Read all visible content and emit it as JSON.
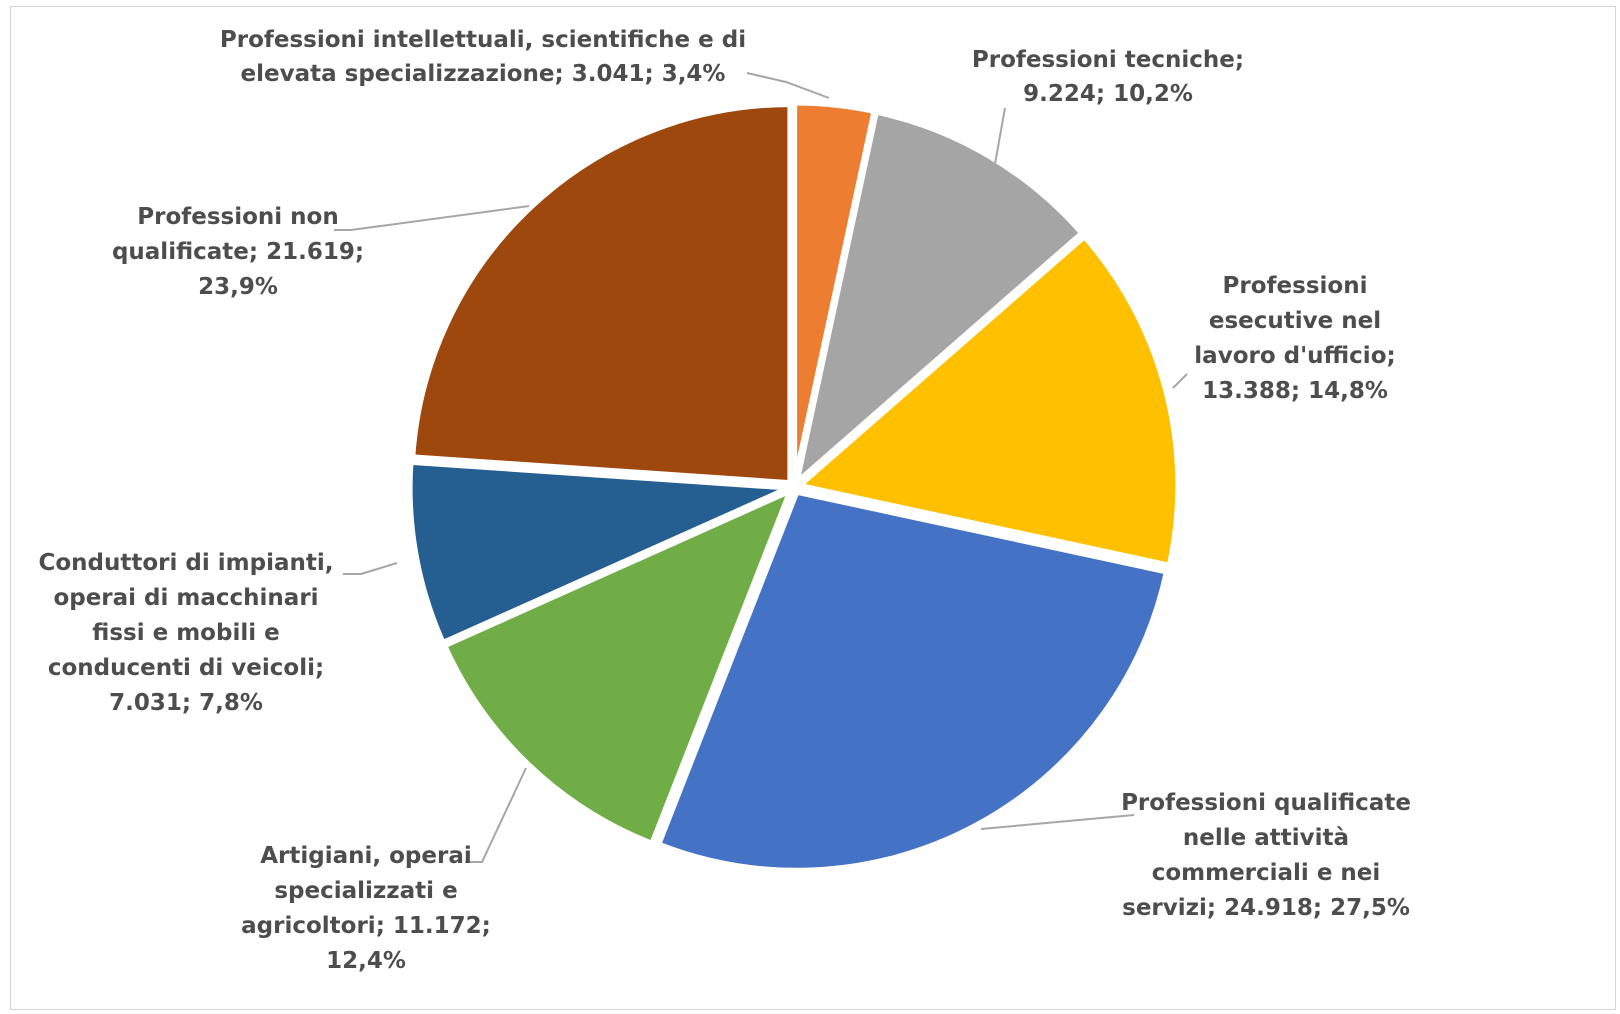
{
  "chart_data": {
    "type": "pie",
    "title": "",
    "start_angle_deg": 0,
    "direction": "clockwise",
    "exploded": true,
    "slices": [
      {
        "name": "Professioni intellettuali, scientifiche e di elevata specializzazione",
        "value": 3041,
        "percent": 3.4,
        "color": "#ED7D31",
        "label_lines": [
          "Professioni intellettuali, scientifiche e di",
          "elevata specializzazione; 3.041; 3,4%"
        ]
      },
      {
        "name": "Professioni tecniche",
        "value": 9224,
        "percent": 10.2,
        "color": "#A5A5A5",
        "label_lines": [
          "Professioni tecniche;",
          "9.224; 10,2%"
        ]
      },
      {
        "name": "Professioni esecutive nel lavoro d'ufficio",
        "value": 13388,
        "percent": 14.8,
        "color": "#FFC000",
        "label_lines": [
          "Professioni",
          "esecutive nel",
          "lavoro d'ufficio;",
          "13.388; 14,8%"
        ]
      },
      {
        "name": "Professioni qualificate nelle attività commerciali e nei servizi",
        "value": 24918,
        "percent": 27.5,
        "color": "#4472C4",
        "label_lines": [
          "Professioni qualificate",
          "nelle attività",
          "commerciali e nei",
          "servizi; 24.918; 27,5%"
        ]
      },
      {
        "name": "Artigiani, operai specializzati e agricoltori",
        "value": 11172,
        "percent": 12.4,
        "color": "#70AD47",
        "label_lines": [
          "Artigiani, operai",
          "specializzati e",
          "agricoltori; 11.172;",
          "12,4%"
        ]
      },
      {
        "name": "Conduttori di impianti, operai di macchinari fissi e mobili e conducenti di veicoli",
        "value": 7031,
        "percent": 7.8,
        "color": "#255E91",
        "label_lines": [
          "Conduttori di impianti,",
          "operai di macchinari",
          "fissi e mobili e",
          "conducenti di veicoli;",
          "7.031; 7,8%"
        ]
      },
      {
        "name": "Professioni non qualificate",
        "value": 21619,
        "percent": 23.9,
        "color": "#9E480E",
        "label_lines": [
          "Professioni non",
          "qualificate; 21.619;",
          "23,9%"
        ]
      }
    ]
  }
}
